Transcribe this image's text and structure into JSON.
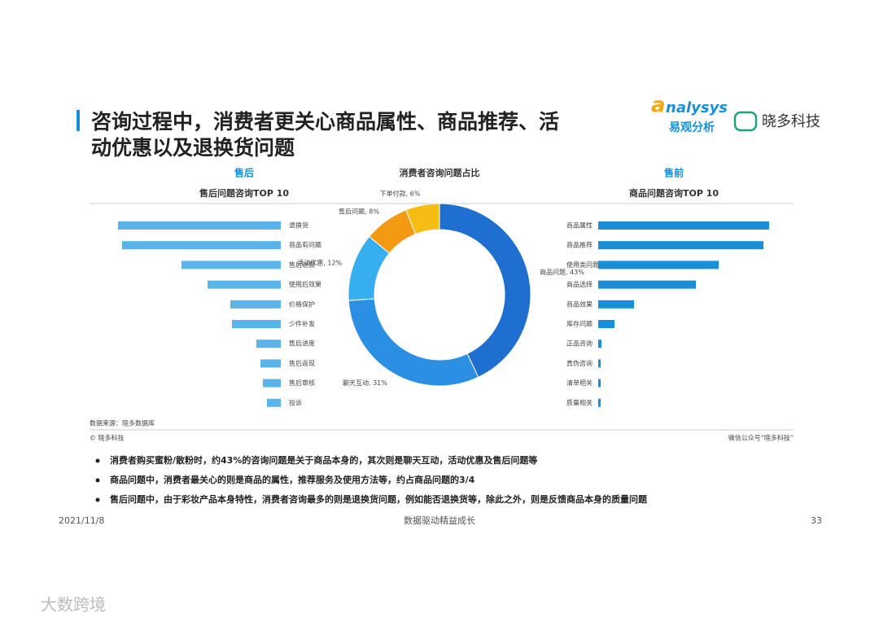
{
  "title_lines": [
    "咨询过程中，消费者更关心商品属性、商品推荐、活",
    "动优惠以及退换货问题"
  ],
  "logos": {
    "analysys": "nalysys",
    "analysys_cn": "易观分析",
    "xiaoduo": "晓多科技"
  },
  "chart_data": [
    {
      "type": "bar",
      "heading": "售后",
      "title": "售后问题咨询TOP 10",
      "orientation": "horizontal",
      "anchor": "right",
      "color": "#5ab4ea",
      "categories": [
        "退换货",
        "商品有问题",
        "售后退款",
        "使用后效果",
        "价格保护",
        "少件补发",
        "售后进度",
        "售后返现",
        "售后审核",
        "投诉"
      ],
      "values": [
        200,
        195,
        122,
        90,
        62,
        60,
        30,
        25,
        22,
        17
      ]
    },
    {
      "type": "pie",
      "title": "消费者咨询问题占比",
      "donut": true,
      "categories": [
        "商品问题",
        "聊天互动",
        "活动优惠",
        "售后问题",
        "下单付款"
      ],
      "values": [
        43,
        31,
        12,
        8,
        6
      ],
      "value_labels": [
        "商品问题, 43%",
        "聊天互动, 31%",
        "活动优惠, 12%",
        "售后问题, 8%",
        "下单付款, 6%"
      ],
      "colors": [
        "#1f6fd0",
        "#2b8fe3",
        "#37aef0",
        "#f39a12",
        "#f7bd12"
      ]
    },
    {
      "type": "bar",
      "heading": "售前",
      "title": "商品问题咨询TOP 10",
      "orientation": "horizontal",
      "anchor": "left",
      "color": "#1a8fd8",
      "categories": [
        "商品属性",
        "商品推荐",
        "使用类问题",
        "商品选择",
        "商品效果",
        "库存问题",
        "正品咨询",
        "真伪咨询",
        "清单相关",
        "质量相关"
      ],
      "values": [
        210,
        203,
        148,
        120,
        44,
        20,
        4,
        3,
        3,
        3
      ]
    }
  ],
  "source": "数据来源：晓多数据库",
  "copyright": "© 晓多科技",
  "wechat": "微信公众号“晓多科技”",
  "bullets": [
    "消费者购买蜜粉/散粉时，约43%的咨询问题是关于商品本身的，其次则是聊天互动，活动优惠及售后问题等",
    "商品问题中，消费者最关心的则是商品的属性，推荐服务及使用方法等，约占商品问题的3/4",
    "售后问题中，由于彩妆产品本身特性，消费者咨询最多的则是退换货问题，例如能否退换货等，除此之外，则是反馈商品本身的质量问题"
  ],
  "footer": {
    "date": "2021/11/8",
    "slogan": "数据驱动精益成长",
    "page": "33"
  },
  "watermark": "大数跨境"
}
